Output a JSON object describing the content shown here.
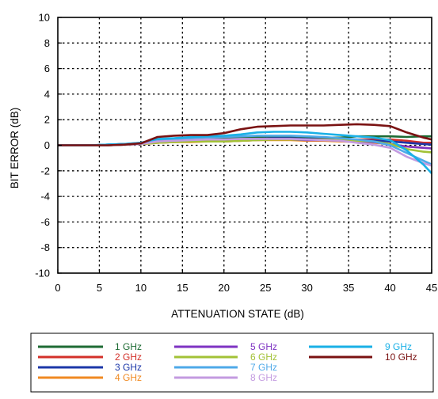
{
  "chart_data": {
    "type": "line",
    "xlabel": "ATTENUATION STATE (dB)",
    "ylabel": "BIT ERROR  (dB)",
    "xlim": [
      0,
      45
    ],
    "ylim": [
      -10,
      10
    ],
    "x_ticks": [
      0,
      5,
      10,
      15,
      20,
      25,
      30,
      35,
      40,
      45
    ],
    "y_ticks": [
      10,
      8,
      6,
      4,
      2,
      0,
      -2,
      -4,
      -6,
      -8,
      -10
    ],
    "grid": true,
    "grid_style": "dotted",
    "legend_position": "bottom",
    "x": [
      0,
      2,
      4,
      6,
      8,
      10,
      12,
      14,
      16,
      18,
      20,
      22,
      24,
      26,
      28,
      30,
      32,
      34,
      36,
      38,
      40,
      42,
      44,
      45
    ],
    "series": [
      {
        "name": "1 GHz",
        "color": "#1e6b34",
        "values": [
          0,
          0,
          0,
          0.05,
          0.1,
          0.15,
          0.4,
          0.45,
          0.5,
          0.55,
          0.5,
          0.6,
          0.65,
          0.7,
          0.7,
          0.65,
          0.6,
          0.6,
          0.7,
          0.7,
          0.7,
          0.65,
          0.7,
          0.7
        ]
      },
      {
        "name": "2 GHz",
        "color": "#d3302a",
        "values": [
          0,
          0,
          0,
          0,
          0.05,
          0.1,
          0.2,
          0.25,
          0.3,
          0.3,
          0.3,
          0.35,
          0.4,
          0.45,
          0.45,
          0.4,
          0.4,
          0.4,
          0.45,
          0.45,
          0.45,
          0.35,
          0.2,
          0.2
        ]
      },
      {
        "name": "3 GHz",
        "color": "#1c37a8",
        "values": [
          0,
          0,
          0,
          0.05,
          0.1,
          0.15,
          0.3,
          0.35,
          0.4,
          0.4,
          0.4,
          0.45,
          0.5,
          0.55,
          0.55,
          0.5,
          0.5,
          0.45,
          0.4,
          0.35,
          0.3,
          0.2,
          0.1,
          0.05
        ]
      },
      {
        "name": "4 GHz",
        "color": "#f08a22",
        "values": [
          0,
          0,
          0,
          0,
          0.05,
          0.1,
          0.2,
          0.25,
          0.25,
          0.3,
          0.3,
          0.35,
          0.4,
          0.4,
          0.4,
          0.35,
          0.35,
          0.3,
          0.25,
          0.2,
          0.1,
          -0.1,
          -0.2,
          -0.25
        ]
      },
      {
        "name": "5 GHz",
        "color": "#7e33c2",
        "values": [
          0,
          0,
          0,
          0,
          0.05,
          0.1,
          0.25,
          0.3,
          0.35,
          0.35,
          0.35,
          0.4,
          0.45,
          0.45,
          0.45,
          0.4,
          0.4,
          0.35,
          0.3,
          0.25,
          0.1,
          -0.1,
          -0.2,
          -0.25
        ]
      },
      {
        "name": "6 GHz",
        "color": "#a2c236",
        "values": [
          0,
          0,
          0,
          0,
          0.05,
          0.1,
          0.2,
          0.25,
          0.3,
          0.3,
          0.3,
          0.35,
          0.4,
          0.45,
          0.45,
          0.45,
          0.45,
          0.4,
          0.35,
          0.3,
          0.1,
          -0.3,
          -0.5,
          -0.55
        ]
      },
      {
        "name": "7 GHz",
        "color": "#4ea9e8",
        "values": [
          0,
          0,
          0,
          0.05,
          0.1,
          0.2,
          0.45,
          0.5,
          0.55,
          0.6,
          0.65,
          0.7,
          0.75,
          0.75,
          0.75,
          0.7,
          0.65,
          0.55,
          0.45,
          0.3,
          0,
          -0.6,
          -1.2,
          -1.5
        ]
      },
      {
        "name": "8 GHz",
        "color": "#c39be0",
        "values": [
          0,
          0,
          0,
          0,
          0.05,
          0.1,
          0.3,
          0.35,
          0.4,
          0.45,
          0.45,
          0.5,
          0.5,
          0.5,
          0.5,
          0.45,
          0.4,
          0.35,
          0.2,
          0.05,
          -0.2,
          -0.9,
          -1.4,
          -1.6
        ]
      },
      {
        "name": "9 GHz",
        "color": "#1ab0e6",
        "values": [
          0,
          0,
          0,
          0.05,
          0.1,
          0.2,
          0.5,
          0.55,
          0.65,
          0.7,
          0.75,
          0.85,
          1.0,
          1.05,
          1.05,
          1.0,
          0.9,
          0.8,
          0.7,
          0.6,
          0.4,
          -0.4,
          -1.5,
          -2.2
        ]
      },
      {
        "name": "10 GHz",
        "color": "#7a1212",
        "values": [
          0,
          0,
          0,
          0,
          0.05,
          0.15,
          0.65,
          0.75,
          0.8,
          0.8,
          0.95,
          1.25,
          1.45,
          1.5,
          1.55,
          1.55,
          1.55,
          1.6,
          1.65,
          1.6,
          1.5,
          1.0,
          0.6,
          0.45
        ]
      }
    ]
  }
}
